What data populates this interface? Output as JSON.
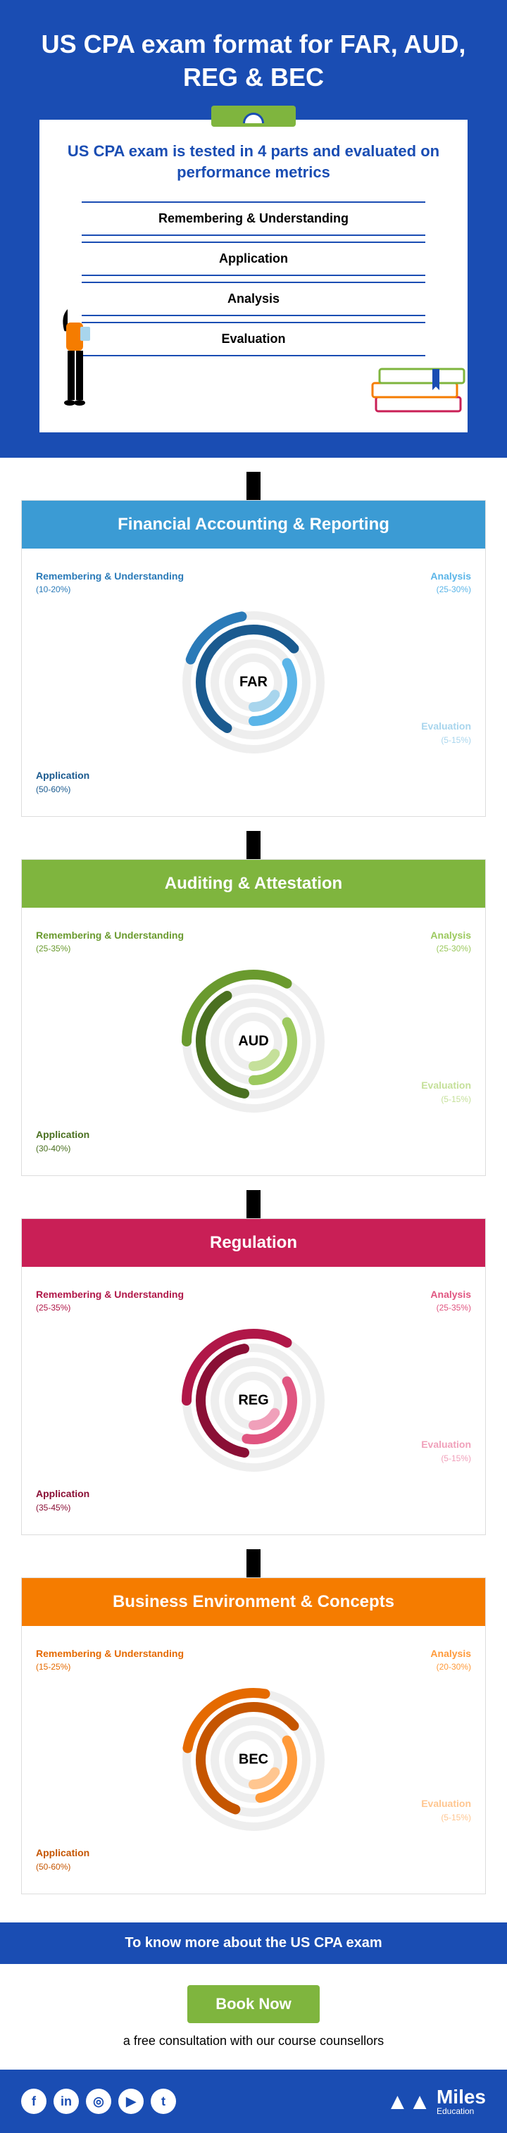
{
  "header": {
    "title": "US CPA exam format for FAR, AUD, REG & BEC",
    "subtitle": "US CPA exam is tested in 4 parts and evaluated on performance metrics",
    "metrics": [
      "Remembering & Understanding",
      "Application",
      "Analysis",
      "Evaluation"
    ]
  },
  "sections": [
    {
      "title": "Financial Accounting & Reporting",
      "abbr": "FAR",
      "header_bg": "#3b9bd4",
      "colors": {
        "c1": "#2a7ab8",
        "c2": "#1a5a8f",
        "c3": "#5bb5e8",
        "c4": "#a8d5ed"
      },
      "labels": {
        "tl": {
          "title": "Remembering & Understanding",
          "val": "(10-20%)",
          "color": "#2a7ab8"
        },
        "bl": {
          "title": "Application",
          "val": "(50-60%)",
          "color": "#1a5a8f"
        },
        "tr": {
          "title": "Analysis",
          "val": "(25-30%)",
          "color": "#5bb5e8"
        },
        "br": {
          "title": "Evaluation",
          "val": "(5-15%)",
          "color": "#a8d5ed"
        }
      },
      "arcs": [
        {
          "r": 95,
          "start": 200,
          "end": 260,
          "color": "#2a7ab8",
          "w": 14
        },
        {
          "r": 75,
          "start": 120,
          "end": 320,
          "color": "#1a5a8f",
          "w": 14
        },
        {
          "r": 55,
          "start": -30,
          "end": 90,
          "color": "#5bb5e8",
          "w": 14
        },
        {
          "r": 35,
          "start": 30,
          "end": 90,
          "color": "#a8d5ed",
          "w": 14
        }
      ]
    },
    {
      "title": "Auditing & Attestation",
      "abbr": "AUD",
      "header_bg": "#7fb53e",
      "colors": {
        "c1": "#6a9a2e",
        "c2": "#4a7020",
        "c3": "#9cc95e",
        "c4": "#c5e09a"
      },
      "labels": {
        "tl": {
          "title": "Remembering & Understanding",
          "val": "(25-35%)",
          "color": "#6a9a2e"
        },
        "bl": {
          "title": "Application",
          "val": "(30-40%)",
          "color": "#4a7020"
        },
        "tr": {
          "title": "Analysis",
          "val": "(25-30%)",
          "color": "#9cc95e"
        },
        "br": {
          "title": "Evaluation",
          "val": "(5-15%)",
          "color": "#c5e09a"
        }
      },
      "arcs": [
        {
          "r": 95,
          "start": 180,
          "end": 300,
          "color": "#6a9a2e",
          "w": 14
        },
        {
          "r": 75,
          "start": 100,
          "end": 240,
          "color": "#4a7020",
          "w": 14
        },
        {
          "r": 55,
          "start": -30,
          "end": 90,
          "color": "#9cc95e",
          "w": 14
        },
        {
          "r": 35,
          "start": 30,
          "end": 90,
          "color": "#c5e09a",
          "w": 14
        }
      ]
    },
    {
      "title": "Regulation",
      "abbr": "REG",
      "header_bg": "#c91f56",
      "colors": {
        "c1": "#b01748",
        "c2": "#8a0f35",
        "c3": "#e05580",
        "c4": "#f0a0ba"
      },
      "labels": {
        "tl": {
          "title": "Remembering & Understanding",
          "val": "(25-35%)",
          "color": "#b01748"
        },
        "bl": {
          "title": "Application",
          "val": "(35-45%)",
          "color": "#8a0f35"
        },
        "tr": {
          "title": "Analysis",
          "val": "(25-35%)",
          "color": "#e05580"
        },
        "br": {
          "title": "Evaluation",
          "val": "(5-15%)",
          "color": "#f0a0ba"
        }
      },
      "arcs": [
        {
          "r": 95,
          "start": 180,
          "end": 300,
          "color": "#b01748",
          "w": 14
        },
        {
          "r": 75,
          "start": 100,
          "end": 260,
          "color": "#8a0f35",
          "w": 14
        },
        {
          "r": 55,
          "start": -30,
          "end": 100,
          "color": "#e05580",
          "w": 14
        },
        {
          "r": 35,
          "start": 30,
          "end": 90,
          "color": "#f0a0ba",
          "w": 14
        }
      ]
    },
    {
      "title": "Business Environment & Concepts",
      "abbr": "BEC",
      "header_bg": "#f57c00",
      "colors": {
        "c1": "#e56a00",
        "c2": "#c55500",
        "c3": "#ff9a3a",
        "c4": "#ffc690"
      },
      "labels": {
        "tl": {
          "title": "Remembering & Understanding",
          "val": "(15-25%)",
          "color": "#e56a00"
        },
        "bl": {
          "title": "Application",
          "val": "(50-60%)",
          "color": "#c55500"
        },
        "tr": {
          "title": "Analysis",
          "val": "(20-30%)",
          "color": "#ff9a3a"
        },
        "br": {
          "title": "Evaluation",
          "val": "(5-15%)",
          "color": "#ffc690"
        }
      },
      "arcs": [
        {
          "r": 95,
          "start": 190,
          "end": 280,
          "color": "#e56a00",
          "w": 14
        },
        {
          "r": 75,
          "start": 110,
          "end": 320,
          "color": "#c55500",
          "w": 14
        },
        {
          "r": 55,
          "start": -30,
          "end": 80,
          "color": "#ff9a3a",
          "w": 14
        },
        {
          "r": 35,
          "start": 30,
          "end": 90,
          "color": "#ffc690",
          "w": 14
        }
      ]
    }
  ],
  "cta": {
    "bar": "To know more about the US CPA exam",
    "button": "Book Now",
    "sub": "a free consultation with our course counsellors"
  },
  "footer": {
    "socials": [
      "f",
      "in",
      "◎",
      "▶",
      "t"
    ],
    "logo": "Miles",
    "logo_sub": "Education"
  }
}
